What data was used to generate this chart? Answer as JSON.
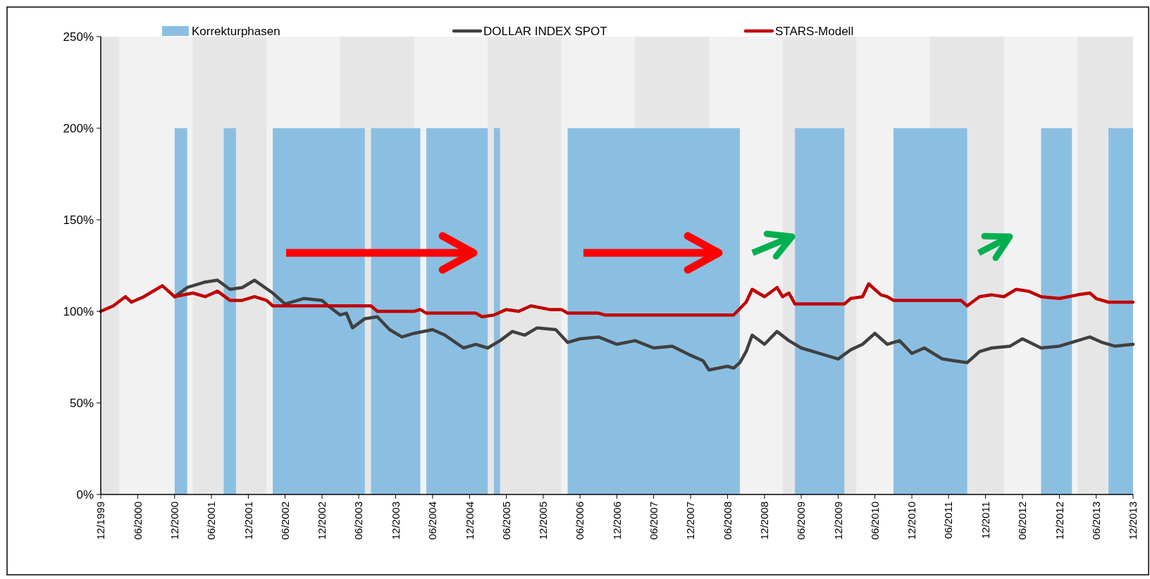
{
  "chart_data": {
    "type": "line",
    "legend": "top",
    "xlim": [
      "1999-12",
      "2013-12"
    ],
    "xticks": [
      {
        "value": "1999-12",
        "label": "12/1999"
      },
      {
        "value": "2000-06",
        "label": "06/2000"
      },
      {
        "value": "2000-12",
        "label": "12/2000"
      },
      {
        "value": "2001-06",
        "label": "06/2001"
      },
      {
        "value": "2001-12",
        "label": "12/2001"
      },
      {
        "value": "2002-06",
        "label": "06/2002"
      },
      {
        "value": "2002-12",
        "label": "12/2002"
      },
      {
        "value": "2003-06",
        "label": "06/2003"
      },
      {
        "value": "2003-12",
        "label": "12/2003"
      },
      {
        "value": "2004-06",
        "label": "06/2004"
      },
      {
        "value": "2004-12",
        "label": "12/2004"
      },
      {
        "value": "2005-06",
        "label": "06/2005"
      },
      {
        "value": "2005-12",
        "label": "12/2005"
      },
      {
        "value": "2006-06",
        "label": "06/2006"
      },
      {
        "value": "2006-12",
        "label": "12/2006"
      },
      {
        "value": "2007-06",
        "label": "06/2007"
      },
      {
        "value": "2007-12",
        "label": "12/2007"
      },
      {
        "value": "2008-06",
        "label": "06/2008"
      },
      {
        "value": "2008-12",
        "label": "12/2008"
      },
      {
        "value": "2009-06",
        "label": "06/2009"
      },
      {
        "value": "2009-12",
        "label": "12/2009"
      },
      {
        "value": "2010-06",
        "label": "06/2010"
      },
      {
        "value": "2010-12",
        "label": "12/2010"
      },
      {
        "value": "2011-06",
        "label": "06/2011"
      },
      {
        "value": "2011-12",
        "label": "12/2011"
      },
      {
        "value": "2012-06",
        "label": "06/2012"
      },
      {
        "value": "2012-12",
        "label": "12/2012"
      },
      {
        "value": "2013-06",
        "label": "06/2013"
      },
      {
        "value": "2013-12",
        "label": "12/2013"
      }
    ],
    "ylim": [
      0,
      250
    ],
    "yticks": [
      {
        "value": 0,
        "label": "0%"
      },
      {
        "value": 50,
        "label": "50%"
      },
      {
        "value": 100,
        "label": "100%"
      },
      {
        "value": 150,
        "label": "150%"
      },
      {
        "value": 200,
        "label": "200%"
      },
      {
        "value": 250,
        "label": "250%"
      }
    ],
    "bands": [
      {
        "axis": "x",
        "from": "1999-12",
        "to": "2000-03",
        "color": "#e6e6e6"
      },
      {
        "axis": "x",
        "from": "2001-03",
        "to": "2002-03",
        "color": "#e6e6e6"
      },
      {
        "axis": "x",
        "from": "2003-03",
        "to": "2004-03",
        "color": "#e6e6e6"
      },
      {
        "axis": "x",
        "from": "2005-03",
        "to": "2006-03",
        "color": "#e6e6e6"
      },
      {
        "axis": "x",
        "from": "2007-03",
        "to": "2008-03",
        "color": "#e6e6e6"
      },
      {
        "axis": "x",
        "from": "2009-03",
        "to": "2010-03",
        "color": "#e6e6e6"
      },
      {
        "axis": "x",
        "from": "2011-03",
        "to": "2012-03",
        "color": "#e6e6e6"
      },
      {
        "axis": "x",
        "from": "2013-03",
        "to": "2013-12",
        "color": "#e6e6e6"
      }
    ],
    "series": [
      {
        "name": "Korrekturphasen",
        "type": "area",
        "color": "#8bbfe2",
        "x": [
          "1999-12",
          "2000-12",
          "2000-12",
          "2001-02",
          "2001-02",
          "2001-08",
          "2001-08",
          "2001-10",
          "2001-10",
          "2002-04",
          "2002-04",
          "2003-07",
          "2003-07",
          "2003-08",
          "2003-08",
          "2004-04",
          "2004-04",
          "2004-05",
          "2004-05",
          "2005-03",
          "2005-03",
          "2005-04",
          "2005-04",
          "2005-05",
          "2005-05",
          "2006-04",
          "2006-04",
          "2008-08",
          "2008-08",
          "2009-05",
          "2009-05",
          "2010-01",
          "2010-01",
          "2010-09",
          "2010-09",
          "2011-09",
          "2011-09",
          "2012-09",
          "2012-09",
          "2013-02",
          "2013-02",
          "2013-08",
          "2013-08",
          "2013-12"
        ],
        "values": [
          0,
          0,
          200,
          200,
          0,
          0,
          200,
          200,
          0,
          0,
          200,
          200,
          0,
          0,
          200,
          200,
          0,
          0,
          200,
          200,
          0,
          0,
          200,
          200,
          0,
          0,
          200,
          200,
          0,
          0,
          200,
          200,
          0,
          0,
          200,
          200,
          0,
          0,
          200,
          200,
          0,
          0,
          200,
          200
        ]
      },
      {
        "name": "DOLLAR INDEX SPOT",
        "color": "#404040",
        "x": [
          "2000-12",
          "2001-02",
          "2001-05",
          "2001-07",
          "2001-09",
          "2001-11",
          "2002-01",
          "2002-04",
          "2002-06",
          "2002-09",
          "2002-12",
          "2003-01",
          "2003-03",
          "2003-04",
          "2003-05",
          "2003-07",
          "2003-09",
          "2003-11",
          "2004-01",
          "2004-03",
          "2004-06",
          "2004-08",
          "2004-11",
          "2005-01",
          "2005-03",
          "2005-05",
          "2005-07",
          "2005-09",
          "2005-11",
          "2006-02",
          "2006-04",
          "2006-06",
          "2006-09",
          "2006-12",
          "2007-03",
          "2007-06",
          "2007-09",
          "2007-12",
          "2008-02",
          "2008-03",
          "2008-06",
          "2008-07",
          "2008-08",
          "2008-09",
          "2008-10",
          "2008-12",
          "2009-02",
          "2009-04",
          "2009-06",
          "2009-09",
          "2009-12",
          "2010-02",
          "2010-04",
          "2010-06",
          "2010-08",
          "2010-10",
          "2010-12",
          "2011-02",
          "2011-05",
          "2011-07",
          "2011-09",
          "2011-11",
          "2012-01",
          "2012-04",
          "2012-06",
          "2012-09",
          "2012-12",
          "2013-03",
          "2013-05",
          "2013-07",
          "2013-09",
          "2013-12"
        ],
        "values": [
          108,
          113,
          116,
          117,
          112,
          113,
          117,
          110,
          104,
          107,
          106,
          103,
          98,
          99,
          91,
          96,
          97,
          90,
          86,
          88,
          90,
          87,
          80,
          82,
          80,
          84,
          89,
          87,
          91,
          90,
          83,
          85,
          86,
          82,
          84,
          80,
          81,
          76,
          73,
          68,
          70,
          69,
          72,
          78,
          87,
          82,
          89,
          84,
          80,
          77,
          74,
          79,
          82,
          88,
          82,
          84,
          77,
          80,
          74,
          73,
          72,
          78,
          80,
          81,
          85,
          80,
          81,
          84,
          86,
          83,
          81,
          82
        ]
      },
      {
        "name": "STARS-Modell",
        "color": "#c00000",
        "x": [
          "1999-12",
          "2000-02",
          "2000-04",
          "2000-05",
          "2000-07",
          "2000-09",
          "2000-10",
          "2000-12",
          "2001-03",
          "2001-05",
          "2001-07",
          "2001-09",
          "2001-11",
          "2002-01",
          "2002-03",
          "2002-04",
          "2003-08",
          "2003-09",
          "2004-03",
          "2004-04",
          "2004-05",
          "2005-01",
          "2005-02",
          "2005-04",
          "2005-06",
          "2005-08",
          "2005-10",
          "2006-01",
          "2006-03",
          "2006-04",
          "2006-09",
          "2006-10",
          "2008-07",
          "2008-09",
          "2008-10",
          "2008-12",
          "2009-02",
          "2009-03",
          "2009-04",
          "2009-05",
          "2010-01",
          "2010-02",
          "2010-04",
          "2010-05",
          "2010-07",
          "2010-08",
          "2010-09",
          "2011-08",
          "2011-09",
          "2011-11",
          "2012-01",
          "2012-03",
          "2012-05",
          "2012-07",
          "2012-09",
          "2012-12",
          "2013-03",
          "2013-05",
          "2013-06",
          "2013-08",
          "2013-12"
        ],
        "values": [
          100,
          103,
          108,
          105,
          108,
          112,
          114,
          108,
          110,
          108,
          111,
          106,
          106,
          108,
          106,
          103,
          103,
          100,
          100,
          101,
          99,
          99,
          97,
          98,
          101,
          100,
          103,
          101,
          101,
          99,
          99,
          98,
          98,
          105,
          112,
          108,
          113,
          108,
          110,
          104,
          104,
          107,
          108,
          115,
          109,
          108,
          106,
          106,
          103,
          108,
          109,
          108,
          112,
          111,
          108,
          107,
          109,
          110,
          107,
          105,
          105
        ]
      }
    ]
  }
}
